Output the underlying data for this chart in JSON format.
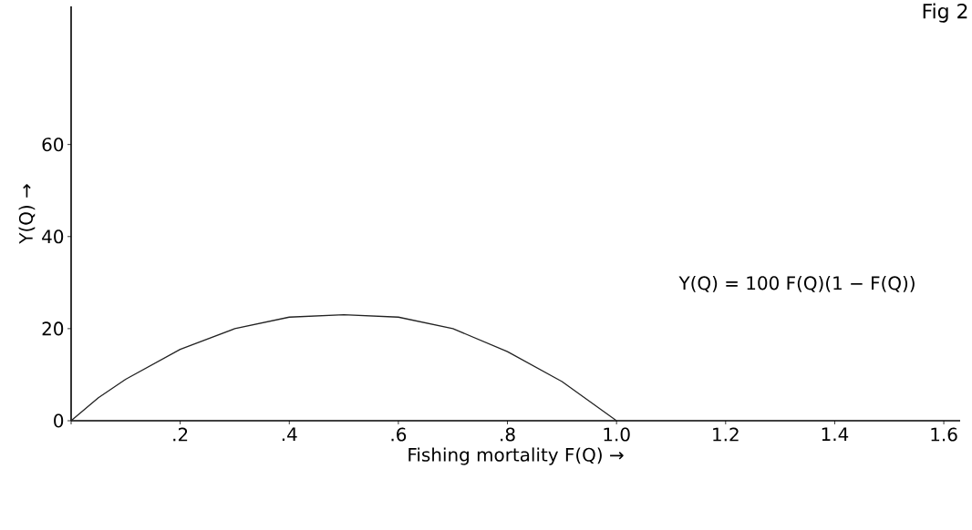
{
  "chart_data": {
    "type": "line",
    "title": "Fig 2",
    "xlabel": "Fishing mortality F(Q) →",
    "ylabel": "Y(Q) →",
    "annotations": [
      "Y(Q) = 100 F(Q)(1 − F(Q))"
    ],
    "x": [
      0,
      0.05,
      0.1,
      0.2,
      0.3,
      0.4,
      0.5,
      0.6,
      0.7,
      0.8,
      0.9,
      1.0
    ],
    "series": [
      {
        "color": "#222222",
        "values": [
          0,
          5,
          9,
          15.5,
          20,
          22.5,
          23,
          22.5,
          20,
          15,
          8.5,
          0
        ]
      }
    ],
    "xlim": [
      0,
      1.63
    ],
    "ylim": [
      0,
      90
    ],
    "xticks": [
      {
        "value": 0,
        "label": null
      },
      {
        "value": 0.2,
        "label": ".2"
      },
      {
        "value": 0.4,
        "label": ".4"
      },
      {
        "value": 0.6,
        "label": ".6"
      },
      {
        "value": 0.8,
        "label": ".8"
      },
      {
        "value": 1.0,
        "label": "1.0"
      },
      {
        "value": 1.2,
        "label": "1.2"
      },
      {
        "value": 1.4,
        "label": "1.4"
      },
      {
        "value": 1.6,
        "label": "1.6"
      }
    ],
    "yticks": [
      0,
      20,
      40,
      60
    ],
    "grid": false,
    "marker": "none",
    "line_style": "solid"
  }
}
